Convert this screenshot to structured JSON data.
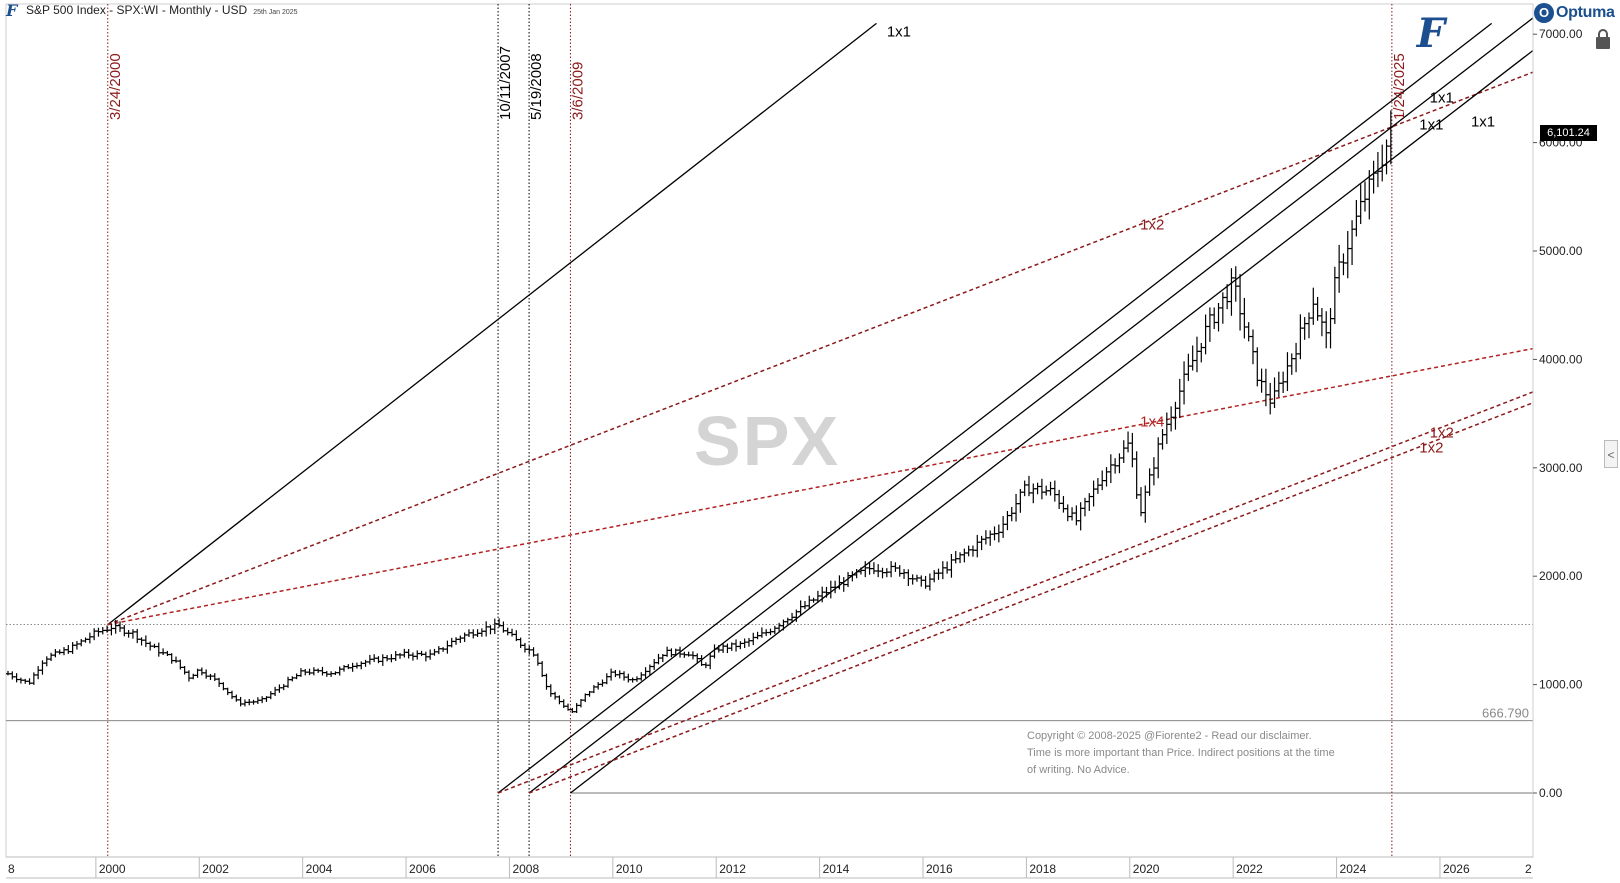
{
  "header": {
    "title": "S&P 500 Index - SPX:WI - Monthly - USD",
    "date": "25th Jan 2025",
    "logo_icon": "fiorente-f-logo"
  },
  "brand": {
    "optuma_label": "Optuma",
    "optuma_icon": "optuma-globe-icon",
    "lock_icon": "lock-icon",
    "side_tab_glyph": "<",
    "watermark_f": "F"
  },
  "watermark": "SPX",
  "copyright": {
    "line1": "Copyright © 2008-2025 @Fiorente2 -  Read our disclaimer.",
    "line2": "Time is more important than Price. Indirect positions at the time",
    "line3": "of writing. No Advice."
  },
  "last_price_label": "6,101.24",
  "colors": {
    "price": "#000000",
    "dark_red": "#8b1a1a",
    "bright_red": "#b22222",
    "brand_blue": "#1c4f8f"
  },
  "chart_data": {
    "type": "ohlc",
    "title": "S&P 500 Index - SPX:WI - Monthly - USD",
    "x_axis": {
      "unit": "year",
      "range": [
        1998.3,
        2027.8
      ],
      "tick_labels": [
        "2000",
        "2002",
        "2004",
        "2006",
        "2008",
        "2010",
        "2012",
        "2014",
        "2016",
        "2018",
        "2020",
        "2022",
        "2024",
        "2026"
      ],
      "edge_labels": [
        "8",
        "2"
      ]
    },
    "y_axis": {
      "side": "right",
      "range": [
        -600,
        7200
      ],
      "tick_labels": [
        "7000.00",
        "6000.00",
        "5000.00",
        "4000.00",
        "3000.00",
        "2000.00",
        "1000.00",
        "0.00"
      ],
      "grid": false
    },
    "last_price": 6101.24,
    "price_anchors": [
      {
        "date": 1998.3,
        "close": 1100
      },
      {
        "date": 1998.7,
        "close": 1010
      },
      {
        "date": 1999.0,
        "close": 1240
      },
      {
        "date": 1999.5,
        "close": 1330
      },
      {
        "date": 2000.0,
        "close": 1480
      },
      {
        "date": 2000.3,
        "close": 1530
      },
      {
        "date": 2000.7,
        "close": 1480
      },
      {
        "date": 2001.0,
        "close": 1370
      },
      {
        "date": 2001.5,
        "close": 1230
      },
      {
        "date": 2001.8,
        "close": 1070
      },
      {
        "date": 2002.0,
        "close": 1140
      },
      {
        "date": 2002.4,
        "close": 1010
      },
      {
        "date": 2002.75,
        "close": 830
      },
      {
        "date": 2003.2,
        "close": 850
      },
      {
        "date": 2003.6,
        "close": 990
      },
      {
        "date": 2004.0,
        "close": 1120
      },
      {
        "date": 2004.6,
        "close": 1110
      },
      {
        "date": 2005.0,
        "close": 1190
      },
      {
        "date": 2006.0,
        "close": 1280
      },
      {
        "date": 2006.5,
        "close": 1270
      },
      {
        "date": 2007.0,
        "close": 1430
      },
      {
        "date": 2007.5,
        "close": 1520
      },
      {
        "date": 2007.8,
        "close": 1540
      },
      {
        "date": 2008.2,
        "close": 1380
      },
      {
        "date": 2008.5,
        "close": 1280
      },
      {
        "date": 2008.75,
        "close": 940
      },
      {
        "date": 2009.0,
        "close": 830
      },
      {
        "date": 2009.2,
        "close": 740
      },
      {
        "date": 2009.5,
        "close": 920
      },
      {
        "date": 2010.0,
        "close": 1110
      },
      {
        "date": 2010.4,
        "close": 1040
      },
      {
        "date": 2011.0,
        "close": 1300
      },
      {
        "date": 2011.5,
        "close": 1290
      },
      {
        "date": 2011.75,
        "close": 1160
      },
      {
        "date": 2012.0,
        "close": 1330
      },
      {
        "date": 2012.5,
        "close": 1370
      },
      {
        "date": 2013.0,
        "close": 1490
      },
      {
        "date": 2014.0,
        "close": 1820
      },
      {
        "date": 2014.5,
        "close": 1960
      },
      {
        "date": 2015.0,
        "close": 2080
      },
      {
        "date": 2015.6,
        "close": 2050
      },
      {
        "date": 2016.0,
        "close": 1920
      },
      {
        "date": 2016.5,
        "close": 2100
      },
      {
        "date": 2017.0,
        "close": 2280
      },
      {
        "date": 2017.5,
        "close": 2450
      },
      {
        "date": 2018.0,
        "close": 2820
      },
      {
        "date": 2018.5,
        "close": 2780
      },
      {
        "date": 2018.95,
        "close": 2500
      },
      {
        "date": 2019.5,
        "close": 2950
      },
      {
        "date": 2020.0,
        "close": 3230
      },
      {
        "date": 2020.2,
        "close": 2580
      },
      {
        "date": 2020.6,
        "close": 3270
      },
      {
        "date": 2021.0,
        "close": 3750
      },
      {
        "date": 2021.5,
        "close": 4300
      },
      {
        "date": 2022.0,
        "close": 4700
      },
      {
        "date": 2022.5,
        "close": 3800
      },
      {
        "date": 2022.75,
        "close": 3600
      },
      {
        "date": 2023.2,
        "close": 4100
      },
      {
        "date": 2023.55,
        "close": 4550
      },
      {
        "date": 2023.8,
        "close": 4200
      },
      {
        "date": 2024.0,
        "close": 4770
      },
      {
        "date": 2024.5,
        "close": 5450
      },
      {
        "date": 2024.75,
        "close": 5700
      },
      {
        "date": 2025.07,
        "close": 6101
      }
    ],
    "vertical_markers": [
      {
        "label": "3/24/2000",
        "date": 2000.23,
        "color": "dark_red",
        "style": "dotted"
      },
      {
        "label": "10/11/2007",
        "date": 2007.78,
        "color": "black",
        "style": "dotted"
      },
      {
        "label": "5/19/2008",
        "date": 2008.38,
        "color": "black",
        "style": "dotted"
      },
      {
        "label": "3/6/2009",
        "date": 2009.18,
        "color": "dark_red",
        "style": "dotted"
      },
      {
        "label": "1/24/2025",
        "date": 2025.07,
        "color": "dark_red",
        "style": "dotted"
      }
    ],
    "horizontal_levels": [
      {
        "value": 666.79,
        "label": "666.790",
        "style": "solid"
      },
      {
        "value": 0,
        "label": "",
        "style": "solid"
      },
      {
        "value": 1553,
        "label": "",
        "style": "dotted"
      }
    ],
    "gann_lines": [
      {
        "label": "1x1",
        "color": "black",
        "style": "solid",
        "from": [
          2000.23,
          1553
        ],
        "to": [
          2015.1,
          7100
        ],
        "label_at": [
          2015.3,
          6980
        ]
      },
      {
        "label": "",
        "color": "dark_red",
        "style": "dashed",
        "from": [
          2000.23,
          1553
        ],
        "to": [
          2027.8,
          6650
        ]
      },
      {
        "label": "1x2",
        "color": "dark_red",
        "style": "dashed",
        "label_at": [
          2020.2,
          5200
        ]
      },
      {
        "label": "",
        "color": "bright_red",
        "style": "dashed",
        "from": [
          2000.23,
          1553
        ],
        "to": [
          2027.8,
          4100
        ]
      },
      {
        "label": "1x4",
        "color": "bright_red",
        "style": "dashed",
        "label_at": [
          2020.2,
          3380
        ]
      },
      {
        "label": "1x1",
        "color": "black",
        "style": "solid",
        "from": [
          2007.78,
          0
        ],
        "to": [
          2027.0,
          7100
        ],
        "label_at": [
          2025.8,
          6370
        ]
      },
      {
        "label": "1x1",
        "color": "black",
        "style": "solid",
        "from": [
          2008.38,
          0
        ],
        "to": [
          2027.8,
          7150
        ],
        "label_at": [
          2025.6,
          6120
        ]
      },
      {
        "label": "1x1",
        "color": "black",
        "style": "solid",
        "from": [
          2009.18,
          0
        ],
        "to": [
          2027.8,
          6850
        ],
        "label_at": [
          2026.6,
          6150
        ]
      },
      {
        "label": "",
        "color": "dark_red",
        "style": "dashed",
        "from": [
          2007.78,
          0
        ],
        "to": [
          2027.8,
          3700
        ]
      },
      {
        "label": "1x2",
        "color": "dark_red",
        "style": "dashed",
        "label_at": [
          2025.8,
          3280
        ]
      },
      {
        "label": "",
        "color": "dark_red",
        "style": "dashed",
        "from": [
          2008.38,
          0
        ],
        "to": [
          2027.8,
          3600
        ]
      },
      {
        "label": "1x2",
        "color": "dark_red",
        "style": "dashed",
        "label_at": [
          2025.6,
          3140
        ]
      }
    ]
  }
}
